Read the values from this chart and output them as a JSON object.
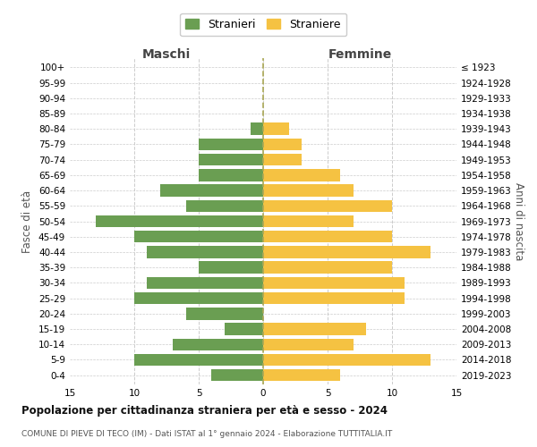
{
  "age_groups": [
    "0-4",
    "5-9",
    "10-14",
    "15-19",
    "20-24",
    "25-29",
    "30-34",
    "35-39",
    "40-44",
    "45-49",
    "50-54",
    "55-59",
    "60-64",
    "65-69",
    "70-74",
    "75-79",
    "80-84",
    "85-89",
    "90-94",
    "95-99",
    "100+"
  ],
  "birth_years": [
    "2019-2023",
    "2014-2018",
    "2009-2013",
    "2004-2008",
    "1999-2003",
    "1994-1998",
    "1989-1993",
    "1984-1988",
    "1979-1983",
    "1974-1978",
    "1969-1973",
    "1964-1968",
    "1959-1963",
    "1954-1958",
    "1949-1953",
    "1944-1948",
    "1939-1943",
    "1934-1938",
    "1929-1933",
    "1924-1928",
    "≤ 1923"
  ],
  "males": [
    4,
    10,
    7,
    3,
    6,
    10,
    9,
    5,
    9,
    10,
    13,
    6,
    8,
    5,
    5,
    5,
    1,
    0,
    0,
    0,
    0
  ],
  "females": [
    6,
    13,
    7,
    8,
    0,
    11,
    11,
    10,
    13,
    10,
    7,
    10,
    7,
    6,
    3,
    3,
    2,
    0,
    0,
    0,
    0
  ],
  "male_color": "#6a9e52",
  "female_color": "#f5c242",
  "title": "Popolazione per cittadinanza straniera per età e sesso - 2024",
  "subtitle": "COMUNE DI PIEVE DI TECO (IM) - Dati ISTAT al 1° gennaio 2024 - Elaborazione TUTTITALIA.IT",
  "xlabel_left": "Maschi",
  "xlabel_right": "Femmine",
  "ylabel_left": "Fasce di età",
  "ylabel_right": "Anni di nascita",
  "legend_male": "Stranieri",
  "legend_female": "Straniere",
  "xlim": 15,
  "background_color": "#ffffff",
  "grid_color": "#cccccc"
}
